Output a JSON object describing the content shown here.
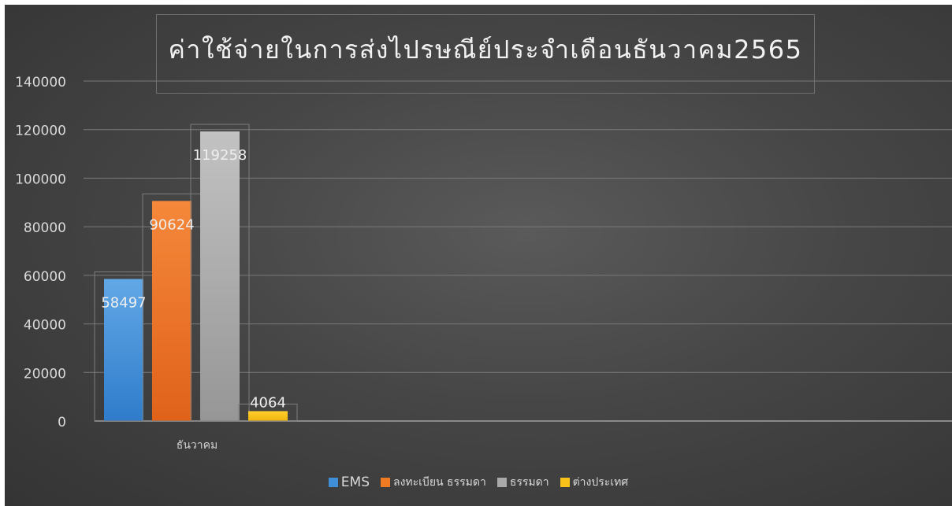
{
  "chart_data": {
    "type": "bar",
    "title": "ค่าใช้จ่ายในการส่งไปรษณีย์ประจำเดือนธันวาคม2565",
    "categories": [
      "ธันวาคม"
    ],
    "series": [
      {
        "name": "EMS",
        "values": [
          58497
        ],
        "color": "#3f8fd8"
      },
      {
        "name": "ลงทะเบียน ธรรมดา",
        "values": [
          90624
        ],
        "color": "#f07a22"
      },
      {
        "name": "ธรรมดา",
        "values": [
          119258
        ],
        "color": "#a9a9a9"
      },
      {
        "name": "ต่างประเทศ",
        "values": [
          4064
        ],
        "color": "#f7c21a"
      }
    ],
    "ylim": [
      0,
      140000
    ],
    "yticks": [
      "0",
      "20000",
      "40000",
      "60000",
      "80000",
      "100000",
      "120000",
      "140000"
    ],
    "grid": true,
    "legend_position": "bottom",
    "data_labels": [
      "58497",
      "90624",
      "119258",
      "4064"
    ]
  }
}
